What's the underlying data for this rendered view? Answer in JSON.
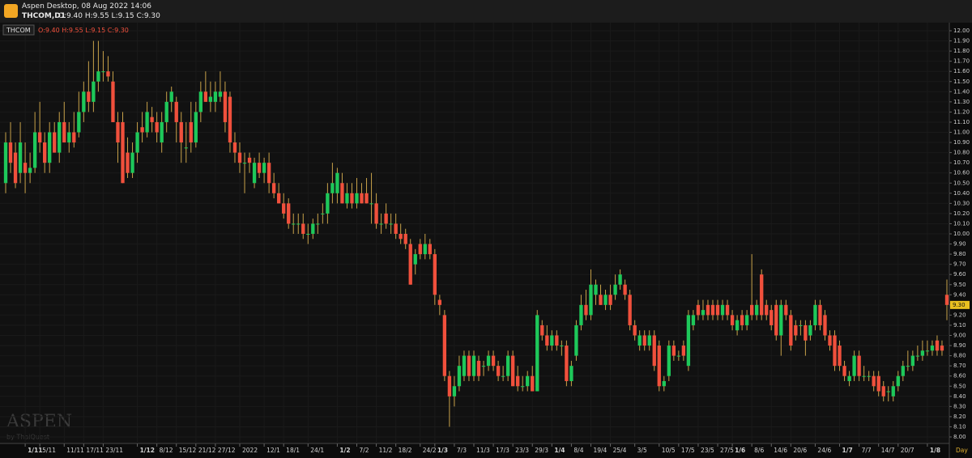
{
  "window": {
    "title": "Aspen Desktop, 08 Aug 2022 14:06",
    "symbol": "THCOM,D1",
    "ohlc_text": "O:9.40 H:9.55 L:9.15 C:9.30"
  },
  "chart_data": {
    "type": "candlestick",
    "symbol_label": "THCOM",
    "ohlc_text": "O:9.40 H:9.55 L:9.15 C:9.30",
    "period_label": "Day",
    "watermark": "ASPEN",
    "watermark_sub": "by ThaiQuest",
    "up_color": "#1ec85a",
    "down_color": "#f0503c",
    "wick_color": "#c8a24a",
    "grid": true,
    "last_price": {
      "value": 9.3,
      "label": "9.30"
    },
    "ylim": [
      8.0,
      12.0
    ],
    "yticks": [
      {
        "value": 8.0,
        "label": "8.00"
      },
      {
        "value": 8.1,
        "label": "8.10"
      },
      {
        "value": 8.2,
        "label": "8.20"
      },
      {
        "value": 8.3,
        "label": "8.30"
      },
      {
        "value": 8.4,
        "label": "8.40"
      },
      {
        "value": 8.5,
        "label": "8.50"
      },
      {
        "value": 8.6,
        "label": "8.60"
      },
      {
        "value": 8.7,
        "label": "8.70"
      },
      {
        "value": 8.8,
        "label": "8.80"
      },
      {
        "value": 8.9,
        "label": "8.90"
      },
      {
        "value": 9.0,
        "label": "9.00"
      },
      {
        "value": 9.1,
        "label": "9.10"
      },
      {
        "value": 9.2,
        "label": "9.20"
      },
      {
        "value": 9.3,
        "label": "9.30"
      },
      {
        "value": 9.4,
        "label": "9.40"
      },
      {
        "value": 9.5,
        "label": "9.50"
      },
      {
        "value": 9.6,
        "label": "9.60"
      },
      {
        "value": 9.7,
        "label": "9.70"
      },
      {
        "value": 9.8,
        "label": "9.80"
      },
      {
        "value": 9.9,
        "label": "9.90"
      },
      {
        "value": 10.0,
        "label": "10.00"
      },
      {
        "value": 10.1,
        "label": "10.10"
      },
      {
        "value": 10.2,
        "label": "10.20"
      },
      {
        "value": 10.3,
        "label": "10.30"
      },
      {
        "value": 10.4,
        "label": "10.40"
      },
      {
        "value": 10.5,
        "label": "10.50"
      },
      {
        "value": 10.6,
        "label": "10.60"
      },
      {
        "value": 10.7,
        "label": "10.70"
      },
      {
        "value": 10.8,
        "label": "10.80"
      },
      {
        "value": 10.9,
        "label": "10.90"
      },
      {
        "value": 11.0,
        "label": "11.00"
      },
      {
        "value": 11.1,
        "label": "11.10"
      },
      {
        "value": 11.2,
        "label": "11.20"
      },
      {
        "value": 11.3,
        "label": "11.30"
      },
      {
        "value": 11.4,
        "label": "11.40"
      },
      {
        "value": 11.5,
        "label": "11.50"
      },
      {
        "value": 11.6,
        "label": "11.60"
      },
      {
        "value": 11.7,
        "label": "11.70"
      },
      {
        "value": 11.8,
        "label": "11.80"
      },
      {
        "value": 11.9,
        "label": "11.90"
      },
      {
        "value": 12.0,
        "label": "12.00"
      }
    ],
    "categories": [
      null,
      null,
      null,
      null,
      "1/11",
      null,
      null,
      "5/11",
      null,
      null,
      null,
      null,
      "11/11",
      null,
      null,
      null,
      "17/11",
      null,
      null,
      null,
      "23/11",
      null,
      null,
      null,
      null,
      null,
      null,
      "1/12",
      null,
      null,
      null,
      "8/12",
      null,
      null,
      null,
      "15/12",
      null,
      null,
      null,
      "21/12",
      null,
      null,
      null,
      "27/12",
      null,
      null,
      null,
      null,
      "2022",
      null,
      null,
      null,
      null,
      "12/1",
      null,
      null,
      null,
      "18/1",
      null,
      null,
      null,
      null,
      "24/1",
      null,
      null,
      null,
      null,
      null,
      "1/2",
      null,
      null,
      null,
      "7/2",
      null,
      null,
      null,
      "11/2",
      null,
      null,
      null,
      "18/2",
      null,
      null,
      null,
      null,
      "24/2",
      null,
      null,
      "1/3",
      null,
      null,
      null,
      "7/3",
      null,
      null,
      null,
      "11/3",
      null,
      null,
      null,
      "17/3",
      null,
      null,
      null,
      "23/3",
      null,
      null,
      null,
      "29/3",
      null,
      null,
      null,
      "1/4",
      null,
      null,
      null,
      "8/4",
      null,
      null,
      null,
      "19/4",
      null,
      null,
      null,
      "25/4",
      null,
      null,
      null,
      null,
      "3/5",
      null,
      null,
      null,
      null,
      "10/5",
      null,
      null,
      null,
      "17/5",
      null,
      null,
      null,
      "23/5",
      null,
      null,
      null,
      "27/5",
      null,
      null,
      "1/6",
      null,
      null,
      null,
      "8/6",
      null,
      null,
      null,
      "14/6",
      null,
      null,
      null,
      "20/6",
      null,
      null,
      null,
      null,
      "24/6",
      null,
      null,
      null,
      null,
      "1/7",
      null,
      null,
      null,
      "7/7",
      null,
      null,
      null,
      "14/7",
      null,
      null,
      null,
      "20/7",
      null,
      null,
      null,
      null,
      null,
      "1/8",
      null,
      null,
      null,
      null
    ],
    "ohlc": [
      [
        10.5,
        11.0,
        10.4,
        10.9
      ],
      [
        10.9,
        11.1,
        10.6,
        10.7
      ],
      [
        10.8,
        10.9,
        10.45,
        10.5
      ],
      [
        10.6,
        11.1,
        10.5,
        10.9
      ],
      [
        10.7,
        10.9,
        10.4,
        10.6
      ],
      [
        10.6,
        10.8,
        10.5,
        10.65
      ],
      [
        10.65,
        11.2,
        10.6,
        11.0
      ],
      [
        11.0,
        11.3,
        10.8,
        10.9
      ],
      [
        10.9,
        11.0,
        10.6,
        10.7
      ],
      [
        10.7,
        11.1,
        10.6,
        11.0
      ],
      [
        11.0,
        11.1,
        10.8,
        10.8
      ],
      [
        10.8,
        11.2,
        10.7,
        11.1
      ],
      [
        11.1,
        11.3,
        10.9,
        10.9
      ],
      [
        10.9,
        11.1,
        10.8,
        11.0
      ],
      [
        11.0,
        11.2,
        10.85,
        10.9
      ],
      [
        11.0,
        11.4,
        10.95,
        11.2
      ],
      [
        11.2,
        11.5,
        11.1,
        11.4
      ],
      [
        11.4,
        11.7,
        11.2,
        11.3
      ],
      [
        11.3,
        11.9,
        11.2,
        11.5
      ],
      [
        11.5,
        11.9,
        11.4,
        11.6
      ],
      [
        11.6,
        11.8,
        11.5,
        11.6
      ],
      [
        11.6,
        11.75,
        11.5,
        11.55
      ],
      [
        11.5,
        11.6,
        11.1,
        11.1
      ],
      [
        11.1,
        11.2,
        10.7,
        10.9
      ],
      [
        11.1,
        11.2,
        10.5,
        10.5
      ],
      [
        10.8,
        10.95,
        10.55,
        10.6
      ],
      [
        10.6,
        10.9,
        10.55,
        10.8
      ],
      [
        10.8,
        11.1,
        10.7,
        11.0
      ],
      [
        11.05,
        11.2,
        10.9,
        11.0
      ],
      [
        11.0,
        11.3,
        10.95,
        11.2
      ],
      [
        11.15,
        11.25,
        11.0,
        11.1
      ],
      [
        11.1,
        11.2,
        10.9,
        11.0
      ],
      [
        10.9,
        11.2,
        10.8,
        11.1
      ],
      [
        11.1,
        11.4,
        11.0,
        11.3
      ],
      [
        11.3,
        11.45,
        11.2,
        11.4
      ],
      [
        11.3,
        11.35,
        10.9,
        11.1
      ],
      [
        11.1,
        11.2,
        10.7,
        10.9
      ],
      [
        10.85,
        11.1,
        10.7,
        10.85
      ],
      [
        11.1,
        11.3,
        10.8,
        10.9
      ],
      [
        10.9,
        11.3,
        10.85,
        11.2
      ],
      [
        11.2,
        11.5,
        11.1,
        11.4
      ],
      [
        11.4,
        11.6,
        11.3,
        11.3
      ],
      [
        11.3,
        11.5,
        11.2,
        11.35
      ],
      [
        11.3,
        11.5,
        11.2,
        11.4
      ],
      [
        11.35,
        11.6,
        11.3,
        11.4
      ],
      [
        11.4,
        11.5,
        11.0,
        11.1
      ],
      [
        11.35,
        11.4,
        10.8,
        10.9
      ],
      [
        10.9,
        11.0,
        10.7,
        10.8
      ],
      [
        10.8,
        10.9,
        10.6,
        10.7
      ],
      [
        10.7,
        10.8,
        10.4,
        10.7
      ],
      [
        10.75,
        10.8,
        10.6,
        10.7
      ],
      [
        10.5,
        10.75,
        10.45,
        10.7
      ],
      [
        10.7,
        10.8,
        10.55,
        10.6
      ],
      [
        10.6,
        10.75,
        10.5,
        10.7
      ],
      [
        10.7,
        10.8,
        10.4,
        10.5
      ],
      [
        10.5,
        10.6,
        10.35,
        10.4
      ],
      [
        10.4,
        10.5,
        10.3,
        10.3
      ],
      [
        10.3,
        10.4,
        10.15,
        10.2
      ],
      [
        10.3,
        10.35,
        10.05,
        10.1
      ],
      [
        10.1,
        10.2,
        10.0,
        10.1
      ],
      [
        10.1,
        10.2,
        10.0,
        10.1
      ],
      [
        10.1,
        10.2,
        9.95,
        10.0
      ],
      [
        10.0,
        10.1,
        9.9,
        10.0
      ],
      [
        10.0,
        10.15,
        9.95,
        10.1
      ],
      [
        10.1,
        10.2,
        10.0,
        10.1
      ],
      [
        10.2,
        10.3,
        10.1,
        10.2
      ],
      [
        10.2,
        10.5,
        10.1,
        10.4
      ],
      [
        10.4,
        10.7,
        10.3,
        10.5
      ],
      [
        10.4,
        10.65,
        10.3,
        10.6
      ],
      [
        10.5,
        10.6,
        10.3,
        10.3
      ],
      [
        10.3,
        10.5,
        10.25,
        10.4
      ],
      [
        10.4,
        10.5,
        10.25,
        10.3
      ],
      [
        10.3,
        10.55,
        10.25,
        10.4
      ],
      [
        10.4,
        10.5,
        10.3,
        10.3
      ],
      [
        10.4,
        10.55,
        10.3,
        10.3
      ],
      [
        10.3,
        10.6,
        10.1,
        10.3
      ],
      [
        10.3,
        10.4,
        10.05,
        10.1
      ],
      [
        10.1,
        10.2,
        10.0,
        10.1
      ],
      [
        10.2,
        10.3,
        10.05,
        10.1
      ],
      [
        10.1,
        10.2,
        10.0,
        10.1
      ],
      [
        10.1,
        10.2,
        9.95,
        10.0
      ],
      [
        10.0,
        10.1,
        9.9,
        9.95
      ],
      [
        10.0,
        10.05,
        9.85,
        9.9
      ],
      [
        9.9,
        9.95,
        9.5,
        9.5
      ],
      [
        9.7,
        9.85,
        9.6,
        9.8
      ],
      [
        9.9,
        9.95,
        9.75,
        9.8
      ],
      [
        9.8,
        10.0,
        9.75,
        9.9
      ],
      [
        9.9,
        9.95,
        9.75,
        9.8
      ],
      [
        9.8,
        9.85,
        9.3,
        9.4
      ],
      [
        9.35,
        9.4,
        9.2,
        9.3
      ],
      [
        9.2,
        9.25,
        8.55,
        8.6
      ],
      [
        8.6,
        8.65,
        8.1,
        8.4
      ],
      [
        8.4,
        8.6,
        8.3,
        8.5
      ],
      [
        8.5,
        8.8,
        8.45,
        8.7
      ],
      [
        8.6,
        8.85,
        8.55,
        8.8
      ],
      [
        8.8,
        8.85,
        8.55,
        8.6
      ],
      [
        8.6,
        8.85,
        8.55,
        8.8
      ],
      [
        8.75,
        8.8,
        8.55,
        8.6
      ],
      [
        8.7,
        8.75,
        8.6,
        8.7
      ],
      [
        8.7,
        8.85,
        8.65,
        8.8
      ],
      [
        8.8,
        8.85,
        8.65,
        8.7
      ],
      [
        8.7,
        8.75,
        8.55,
        8.6
      ],
      [
        8.6,
        8.7,
        8.55,
        8.6
      ],
      [
        8.6,
        8.85,
        8.55,
        8.8
      ],
      [
        8.8,
        8.85,
        8.5,
        8.5
      ],
      [
        8.6,
        8.7,
        8.45,
        8.5
      ],
      [
        8.5,
        8.6,
        8.45,
        8.5
      ],
      [
        8.5,
        8.65,
        8.45,
        8.6
      ],
      [
        8.6,
        8.7,
        8.45,
        8.45
      ],
      [
        8.45,
        9.25,
        8.45,
        9.2
      ],
      [
        9.1,
        9.15,
        8.95,
        9.0
      ],
      [
        9.0,
        9.1,
        8.85,
        8.9
      ],
      [
        8.9,
        9.05,
        8.85,
        9.0
      ],
      [
        9.0,
        9.05,
        8.85,
        8.9
      ],
      [
        8.9,
        8.95,
        8.8,
        8.9
      ],
      [
        8.9,
        8.95,
        8.5,
        8.55
      ],
      [
        8.55,
        8.75,
        8.5,
        8.7
      ],
      [
        8.8,
        9.15,
        8.75,
        9.1
      ],
      [
        9.1,
        9.4,
        9.05,
        9.3
      ],
      [
        9.3,
        9.45,
        9.15,
        9.2
      ],
      [
        9.2,
        9.65,
        9.15,
        9.5
      ],
      [
        9.4,
        9.55,
        9.3,
        9.5
      ],
      [
        9.4,
        9.5,
        9.3,
        9.3
      ],
      [
        9.3,
        9.45,
        9.25,
        9.4
      ],
      [
        9.4,
        9.5,
        9.25,
        9.3
      ],
      [
        9.4,
        9.6,
        9.35,
        9.5
      ],
      [
        9.5,
        9.65,
        9.45,
        9.6
      ],
      [
        9.5,
        9.55,
        9.35,
        9.4
      ],
      [
        9.4,
        9.45,
        9.05,
        9.1
      ],
      [
        9.1,
        9.15,
        8.95,
        9.0
      ],
      [
        8.9,
        9.05,
        8.85,
        9.0
      ],
      [
        9.0,
        9.05,
        8.85,
        8.9
      ],
      [
        8.9,
        9.05,
        8.85,
        9.0
      ],
      [
        9.0,
        9.05,
        8.65,
        8.7
      ],
      [
        8.9,
        8.95,
        8.45,
        8.5
      ],
      [
        8.5,
        8.6,
        8.45,
        8.55
      ],
      [
        8.6,
        8.95,
        8.55,
        8.9
      ],
      [
        8.9,
        8.95,
        8.75,
        8.8
      ],
      [
        8.8,
        8.85,
        8.75,
        8.8
      ],
      [
        8.9,
        8.95,
        8.75,
        8.8
      ],
      [
        8.7,
        9.25,
        8.65,
        9.2
      ],
      [
        9.1,
        9.25,
        9.05,
        9.2
      ],
      [
        9.3,
        9.35,
        9.15,
        9.2
      ],
      [
        9.2,
        9.35,
        9.15,
        9.25
      ],
      [
        9.3,
        9.35,
        9.15,
        9.2
      ],
      [
        9.3,
        9.35,
        9.15,
        9.2
      ],
      [
        9.3,
        9.35,
        9.15,
        9.2
      ],
      [
        9.2,
        9.35,
        9.15,
        9.3
      ],
      [
        9.3,
        9.35,
        9.15,
        9.2
      ],
      [
        9.2,
        9.25,
        9.05,
        9.1
      ],
      [
        9.05,
        9.2,
        9.0,
        9.15
      ],
      [
        9.2,
        9.25,
        9.05,
        9.1
      ],
      [
        9.1,
        9.25,
        9.05,
        9.2
      ],
      [
        9.3,
        9.8,
        9.15,
        9.2
      ],
      [
        9.2,
        9.35,
        9.15,
        9.3
      ],
      [
        9.6,
        9.65,
        9.15,
        9.2
      ],
      [
        9.3,
        9.35,
        9.15,
        9.2
      ],
      [
        9.25,
        9.3,
        9.05,
        9.1
      ],
      [
        9.3,
        9.35,
        8.95,
        9.0
      ],
      [
        9.0,
        9.35,
        8.8,
        9.3
      ],
      [
        9.3,
        9.35,
        9.15,
        9.2
      ],
      [
        9.2,
        9.25,
        8.85,
        8.9
      ],
      [
        9.1,
        9.15,
        8.95,
        9.0
      ],
      [
        9.1,
        9.15,
        9.0,
        9.1
      ],
      [
        9.1,
        9.15,
        8.8,
        8.95
      ],
      [
        9.0,
        9.15,
        8.95,
        9.1
      ],
      [
        9.1,
        9.35,
        9.05,
        9.3
      ],
      [
        9.3,
        9.35,
        9.05,
        9.1
      ],
      [
        9.2,
        9.25,
        8.95,
        9.0
      ],
      [
        9.0,
        9.05,
        8.85,
        8.9
      ],
      [
        9.0,
        9.05,
        8.65,
        8.7
      ],
      [
        8.9,
        8.95,
        8.65,
        8.7
      ],
      [
        8.7,
        8.75,
        8.55,
        8.6
      ],
      [
        8.55,
        8.65,
        8.5,
        8.6
      ],
      [
        8.6,
        8.85,
        8.55,
        8.8
      ],
      [
        8.8,
        8.85,
        8.55,
        8.6
      ],
      [
        8.6,
        8.7,
        8.55,
        8.6
      ],
      [
        8.6,
        8.65,
        8.55,
        8.6
      ],
      [
        8.6,
        8.65,
        8.45,
        8.5
      ],
      [
        8.6,
        8.65,
        8.4,
        8.45
      ],
      [
        8.5,
        8.55,
        8.35,
        8.4
      ],
      [
        8.45,
        8.5,
        8.35,
        8.45
      ],
      [
        8.4,
        8.55,
        8.35,
        8.5
      ],
      [
        8.5,
        8.65,
        8.45,
        8.6
      ],
      [
        8.6,
        8.75,
        8.55,
        8.7
      ],
      [
        8.7,
        8.85,
        8.65,
        8.7
      ],
      [
        8.7,
        8.85,
        8.65,
        8.8
      ],
      [
        8.8,
        8.9,
        8.75,
        8.8
      ],
      [
        8.8,
        8.95,
        8.75,
        8.85
      ],
      [
        8.85,
        8.95,
        8.8,
        8.85
      ],
      [
        8.85,
        8.95,
        8.8,
        8.9
      ],
      [
        8.95,
        9.0,
        8.8,
        8.85
      ],
      [
        8.9,
        8.95,
        8.8,
        8.85
      ],
      [
        9.4,
        9.55,
        9.15,
        9.3
      ]
    ]
  }
}
